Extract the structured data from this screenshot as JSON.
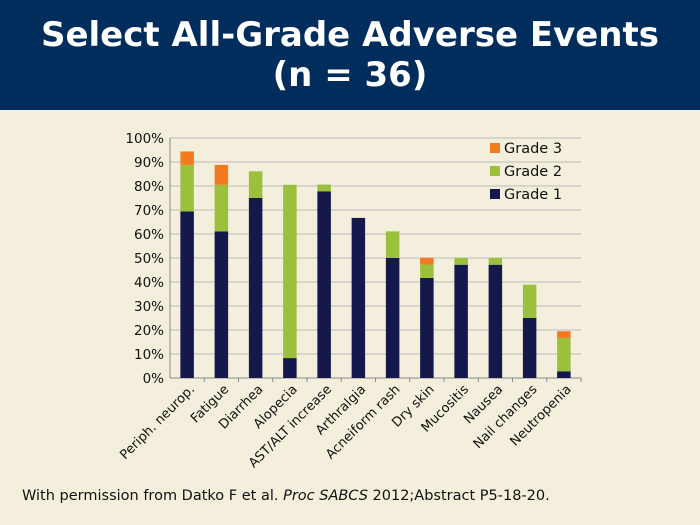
{
  "slide": {
    "title_line1": "Select All-Grade Adverse Events",
    "title_line2": "(n = 36)",
    "citation_prefix": "With permission from Datko F et al. ",
    "citation_journal": "Proc SABCS",
    "citation_suffix": " 2012;Abstract P5-18-20."
  },
  "colors": {
    "header_bg": "#002d5c",
    "grade1": "#14184a",
    "grade2": "#9bc13c",
    "grade3": "#f47a20",
    "grid": "#bcbcbc"
  },
  "chart_data": {
    "type": "bar",
    "stacked": true,
    "categories": [
      "Periph. neurop.",
      "Fatigue",
      "Diarrhea",
      "Alopecia",
      "AST/ALT increase",
      "Arthralgia",
      "Acneiform rash",
      "Dry skin",
      "Mucositis",
      "Nausea",
      "Nail changes",
      "Neutropenia"
    ],
    "series": [
      {
        "name": "Grade 1",
        "values": [
          69.4,
          61.1,
          75.0,
          8.3,
          77.8,
          66.7,
          50.0,
          41.7,
          47.2,
          47.2,
          25.0,
          2.8
        ]
      },
      {
        "name": "Grade 2",
        "values": [
          19.4,
          19.4,
          11.1,
          72.2,
          2.8,
          0,
          11.1,
          5.6,
          2.8,
          2.8,
          13.9,
          13.9
        ]
      },
      {
        "name": "Grade 3",
        "values": [
          5.6,
          8.3,
          0,
          0,
          0,
          0,
          0,
          2.8,
          0,
          0,
          0,
          2.8
        ]
      }
    ],
    "y_ticks": [
      "0%",
      "10%",
      "20%",
      "30%",
      "40%",
      "50%",
      "60%",
      "70%",
      "80%",
      "90%",
      "100%"
    ],
    "ylim": [
      0,
      100
    ],
    "grid": true,
    "legend_position": "top-right",
    "legend_order": [
      "Grade 3",
      "Grade 2",
      "Grade 1"
    ]
  }
}
